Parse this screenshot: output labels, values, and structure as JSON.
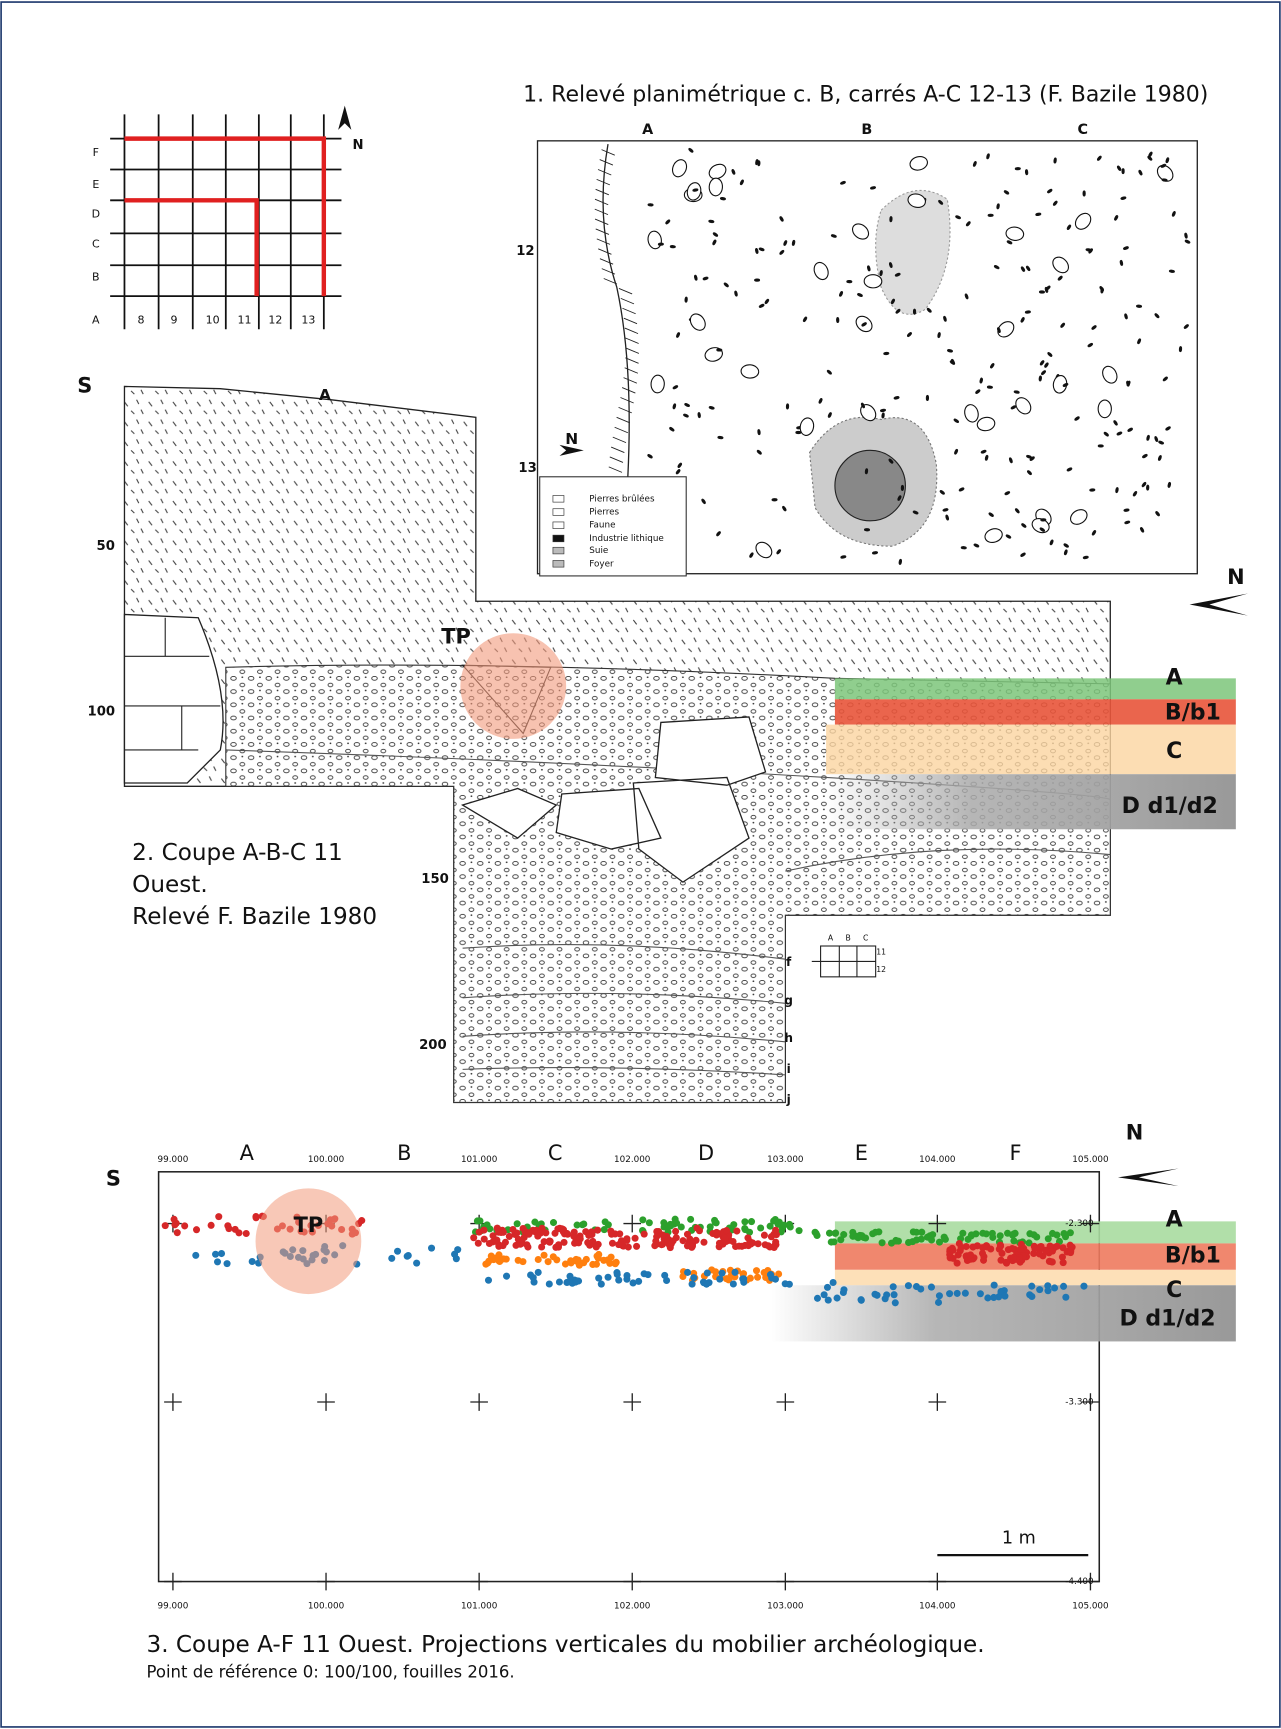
{
  "grid_map": {
    "rows": [
      "F",
      "E",
      "D",
      "C",
      "B",
      "A"
    ],
    "columns": [
      "8",
      "9",
      "10",
      "11",
      "12",
      "13"
    ],
    "north": "N"
  },
  "plan": {
    "title": "1. Relevé planimétrique c. B, carrés A-C 12-13 (F. Bazile 1980)",
    "columns": [
      "A",
      "B",
      "C"
    ],
    "rows": [
      "12",
      "13"
    ],
    "north": "N",
    "legend": [
      "Pierres brûlées",
      "Pierres",
      "Faune",
      "Industrie lithique",
      "Suie",
      "Foyer"
    ]
  },
  "section": {
    "south": "S",
    "column": "A",
    "depths": [
      "50",
      "100",
      "150",
      "200"
    ],
    "tp": "TP",
    "north": "N",
    "layers": [
      "A",
      "B/b1",
      "C",
      "D d1/d2"
    ],
    "caption": [
      "2. Coupe A-B-C 11",
      "Ouest.",
      "Relevé F. Bazile 1980"
    ],
    "sublayers": [
      "f",
      "g",
      "h",
      "i",
      "j"
    ],
    "key": {
      "columns": [
        "A",
        "B",
        "C"
      ],
      "rows": [
        "11",
        "12"
      ]
    }
  },
  "projection": {
    "south": "S",
    "north": "N",
    "columns": [
      "A",
      "B",
      "C",
      "D",
      "E",
      "F"
    ],
    "x_labels": [
      "99.000",
      "100.000",
      "101.000",
      "102.000",
      "103.000",
      "104.000",
      "105.000"
    ],
    "y_labels": [
      "-2.300",
      "-3.300",
      "-4.400"
    ],
    "tp": "TP",
    "layers": [
      "A",
      "B/b1",
      "C",
      "D d1/d2"
    ],
    "scale": "1 m",
    "caption": [
      "3. Coupe A-F 11 Ouest. Projections verticales du mobilier archéologique.",
      "Point de référence 0: 100/100, fouilles 2016."
    ]
  }
}
